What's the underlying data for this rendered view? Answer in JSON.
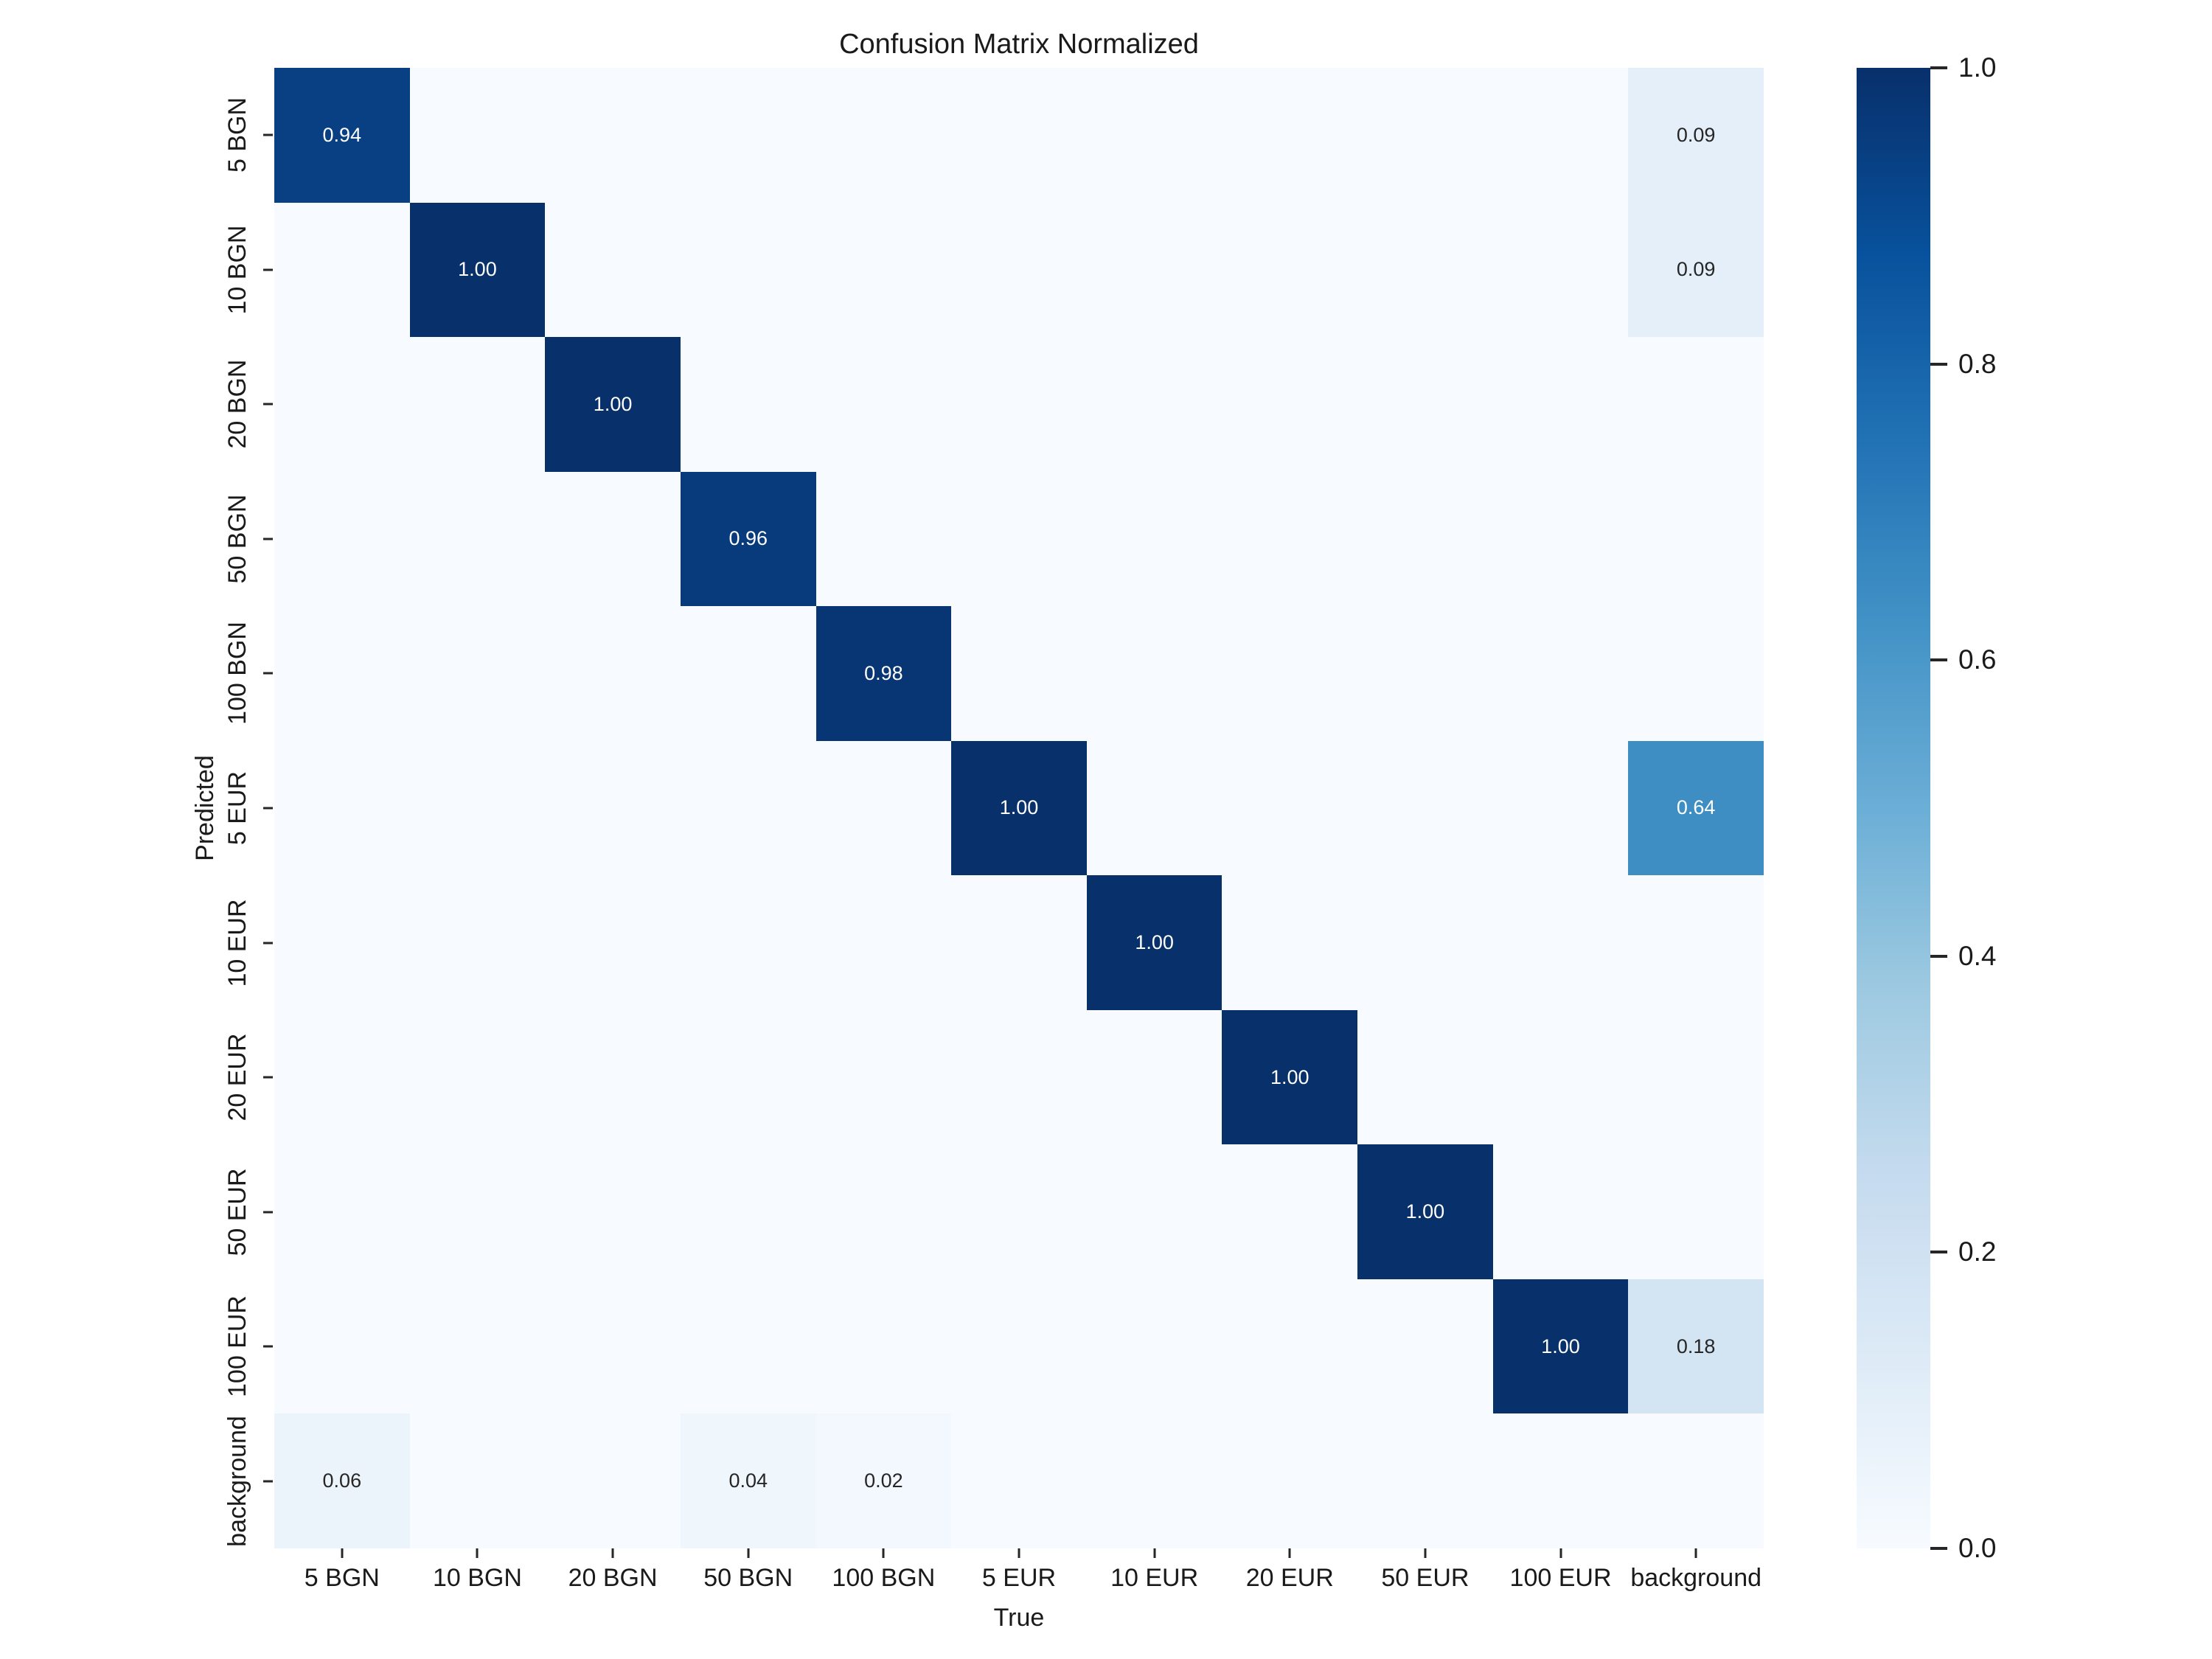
{
  "title": "Confusion Matrix Normalized",
  "chart_data": {
    "type": "heatmap",
    "title": "Confusion Matrix Normalized",
    "xlabel": "True",
    "ylabel": "Predicted",
    "x_labels": [
      "5 BGN",
      "10 BGN",
      "20 BGN",
      "50 BGN",
      "100 BGN",
      "5 EUR",
      "10 EUR",
      "20 EUR",
      "50 EUR",
      "100 EUR",
      "background"
    ],
    "y_labels": [
      "5 BGN",
      "10 BGN",
      "20 BGN",
      "50 BGN",
      "100 BGN",
      "5 EUR",
      "10 EUR",
      "20 EUR",
      "50 EUR",
      "100 EUR",
      "background"
    ],
    "matrix": [
      [
        0.94,
        0,
        0,
        0,
        0,
        0,
        0,
        0,
        0,
        0,
        0.09
      ],
      [
        0,
        1.0,
        0,
        0,
        0,
        0,
        0,
        0,
        0,
        0,
        0.09
      ],
      [
        0,
        0,
        1.0,
        0,
        0,
        0,
        0,
        0,
        0,
        0,
        0
      ],
      [
        0,
        0,
        0,
        0.96,
        0,
        0,
        0,
        0,
        0,
        0,
        0
      ],
      [
        0,
        0,
        0,
        0,
        0.98,
        0,
        0,
        0,
        0,
        0,
        0
      ],
      [
        0,
        0,
        0,
        0,
        0,
        1.0,
        0,
        0,
        0,
        0,
        0.64
      ],
      [
        0,
        0,
        0,
        0,
        0,
        0,
        1.0,
        0,
        0,
        0,
        0
      ],
      [
        0,
        0,
        0,
        0,
        0,
        0,
        0,
        1.0,
        0,
        0,
        0
      ],
      [
        0,
        0,
        0,
        0,
        0,
        0,
        0,
        0,
        1.0,
        0,
        0
      ],
      [
        0,
        0,
        0,
        0,
        0,
        0,
        0,
        0,
        0,
        1.0,
        0.18
      ],
      [
        0.06,
        0,
        0,
        0.04,
        0.02,
        0,
        0,
        0,
        0,
        0,
        0
      ]
    ],
    "hide_zero_annotations": true,
    "value_format_decimals": 2,
    "vmin": 0.0,
    "vmax": 1.0,
    "colormap_name": "Blues",
    "colormap_anchors": [
      "#f7fbff",
      "#deebf7",
      "#c6dbef",
      "#9ecae1",
      "#6baed6",
      "#4292c6",
      "#2171b5",
      "#08519c",
      "#08306b"
    ],
    "annotation_color_dark": "#262626",
    "annotation_color_light": "#ffffff",
    "colorbar_ticks": [
      {
        "value": 1.0,
        "label": "1.0"
      },
      {
        "value": 0.8,
        "label": "0.8"
      },
      {
        "value": 0.6,
        "label": "0.6"
      },
      {
        "value": 0.4,
        "label": "0.4"
      },
      {
        "value": 0.2,
        "label": "0.2"
      },
      {
        "value": 0.0,
        "label": "0.0"
      }
    ],
    "grid": false,
    "legend_position": "none"
  }
}
